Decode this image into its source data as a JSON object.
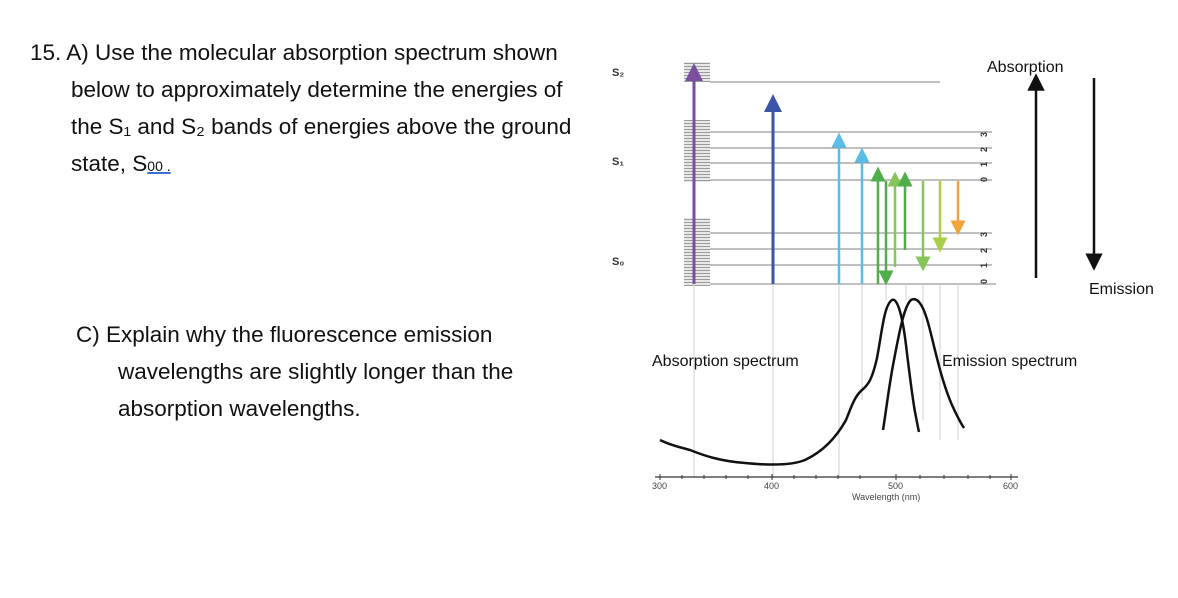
{
  "question_a": {
    "line1": "15.  A) Use the molecular absorption spectrum shown",
    "line2": "below to approximately determine the energies of",
    "line3": "the S₁ and S₂ bands of energies above the ground",
    "line4_prefix": "state, S",
    "line4_sub": "00 .",
    "line4_suffix": ""
  },
  "question_c": {
    "line1": "C)   Explain why the fluorescence emission",
    "line2": "wavelengths are slightly longer than the",
    "line3": "absorption wavelengths."
  },
  "diagram": {
    "state_labels": [
      "S₂",
      "S₁",
      "S₀"
    ],
    "vib_labels_s1": [
      "3",
      "2",
      "1",
      "0"
    ],
    "vib_labels_s0": [
      "3",
      "2",
      "1",
      "0"
    ],
    "absorption_label": "Absorption",
    "emission_label": "Emission",
    "absorption_spectrum_label": "Absorption spectrum",
    "emission_spectrum_label": "Emission spectrum",
    "x_axis_label": "Wavelength (nm)",
    "x_ticks": [
      "300",
      "400",
      "500",
      "600"
    ],
    "colors": {
      "violet": "#7b4fa0",
      "blue": "#3a55a8",
      "cyan": "#5bbde6",
      "green_dark": "#4fae4a",
      "green_light": "#86c55a",
      "yellow_green": "#a8cf45",
      "orange": "#f0a43a",
      "level_line": "#9a9a9a",
      "curve": "#111111"
    }
  }
}
